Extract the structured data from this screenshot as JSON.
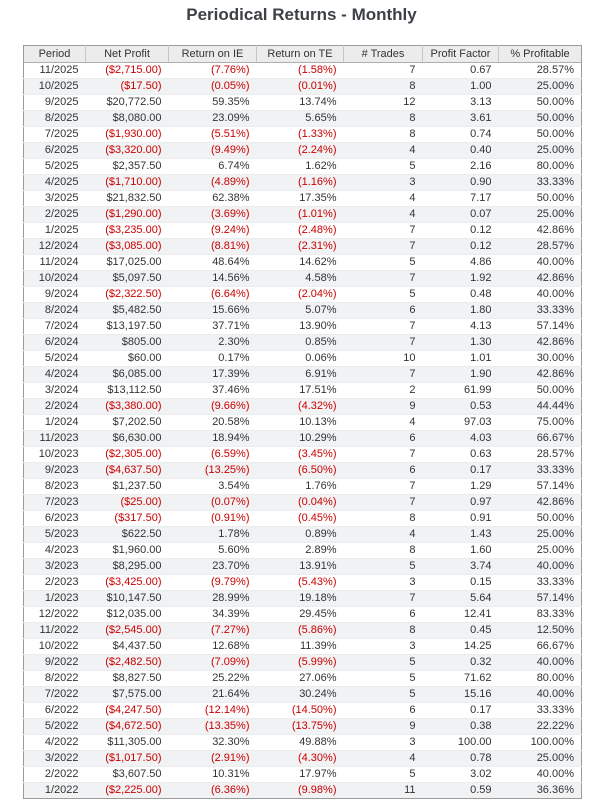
{
  "title": "Periodical Returns - Monthly",
  "colors": {
    "title_color": "#3d4145",
    "text_color": "#333333",
    "negative": "#cc0000",
    "header_bg": "#ececec",
    "stripe": "#f0f2f4",
    "outer_border": "#9b9b9b",
    "header_border": "#a7afb7",
    "row_border": "#eaecee"
  },
  "table": {
    "columns": [
      "Period",
      "Net Profit",
      "Return on IE",
      "Return on TE",
      "# Trades",
      "Profit Factor",
      "% Profitable"
    ],
    "column_keys": [
      "period",
      "net-profit",
      "return-on-ie",
      "return-on-te",
      "num-trades",
      "profit-factor",
      "pct-profitable"
    ],
    "rows": [
      [
        "11/2025",
        "($2,715.00)",
        "(7.76%)",
        "(1.58%)",
        "7",
        "0.67",
        "28.57%"
      ],
      [
        "10/2025",
        "($17.50)",
        "(0.05%)",
        "(0.01%)",
        "8",
        "1.00",
        "25.00%"
      ],
      [
        "9/2025",
        "$20,772.50",
        "59.35%",
        "13.74%",
        "12",
        "3.13",
        "50.00%"
      ],
      [
        "8/2025",
        "$8,080.00",
        "23.09%",
        "5.65%",
        "8",
        "3.61",
        "50.00%"
      ],
      [
        "7/2025",
        "($1,930.00)",
        "(5.51%)",
        "(1.33%)",
        "8",
        "0.74",
        "50.00%"
      ],
      [
        "6/2025",
        "($3,320.00)",
        "(9.49%)",
        "(2.24%)",
        "4",
        "0.40",
        "25.00%"
      ],
      [
        "5/2025",
        "$2,357.50",
        "6.74%",
        "1.62%",
        "5",
        "2.16",
        "80.00%"
      ],
      [
        "4/2025",
        "($1,710.00)",
        "(4.89%)",
        "(1.16%)",
        "3",
        "0.90",
        "33.33%"
      ],
      [
        "3/2025",
        "$21,832.50",
        "62.38%",
        "17.35%",
        "4",
        "7.17",
        "50.00%"
      ],
      [
        "2/2025",
        "($1,290.00)",
        "(3.69%)",
        "(1.01%)",
        "4",
        "0.07",
        "25.00%"
      ],
      [
        "1/2025",
        "($3,235.00)",
        "(9.24%)",
        "(2.48%)",
        "7",
        "0.12",
        "42.86%"
      ],
      [
        "12/2024",
        "($3,085.00)",
        "(8.81%)",
        "(2.31%)",
        "7",
        "0.12",
        "28.57%"
      ],
      [
        "11/2024",
        "$17,025.00",
        "48.64%",
        "14.62%",
        "5",
        "4.86",
        "40.00%"
      ],
      [
        "10/2024",
        "$5,097.50",
        "14.56%",
        "4.58%",
        "7",
        "1.92",
        "42.86%"
      ],
      [
        "9/2024",
        "($2,322.50)",
        "(6.64%)",
        "(2.04%)",
        "5",
        "0.48",
        "40.00%"
      ],
      [
        "8/2024",
        "$5,482.50",
        "15.66%",
        "5.07%",
        "6",
        "1.80",
        "33.33%"
      ],
      [
        "7/2024",
        "$13,197.50",
        "37.71%",
        "13.90%",
        "7",
        "4.13",
        "57.14%"
      ],
      [
        "6/2024",
        "$805.00",
        "2.30%",
        "0.85%",
        "7",
        "1.30",
        "42.86%"
      ],
      [
        "5/2024",
        "$60.00",
        "0.17%",
        "0.06%",
        "10",
        "1.01",
        "30.00%"
      ],
      [
        "4/2024",
        "$6,085.00",
        "17.39%",
        "6.91%",
        "7",
        "1.90",
        "42.86%"
      ],
      [
        "3/2024",
        "$13,112.50",
        "37.46%",
        "17.51%",
        "2",
        "61.99",
        "50.00%"
      ],
      [
        "2/2024",
        "($3,380.00)",
        "(9.66%)",
        "(4.32%)",
        "9",
        "0.53",
        "44.44%"
      ],
      [
        "1/2024",
        "$7,202.50",
        "20.58%",
        "10.13%",
        "4",
        "97.03",
        "75.00%"
      ],
      [
        "11/2023",
        "$6,630.00",
        "18.94%",
        "10.29%",
        "6",
        "4.03",
        "66.67%"
      ],
      [
        "10/2023",
        "($2,305.00)",
        "(6.59%)",
        "(3.45%)",
        "7",
        "0.63",
        "28.57%"
      ],
      [
        "9/2023",
        "($4,637.50)",
        "(13.25%)",
        "(6.50%)",
        "6",
        "0.17",
        "33.33%"
      ],
      [
        "8/2023",
        "$1,237.50",
        "3.54%",
        "1.76%",
        "7",
        "1.29",
        "57.14%"
      ],
      [
        "7/2023",
        "($25.00)",
        "(0.07%)",
        "(0.04%)",
        "7",
        "0.97",
        "42.86%"
      ],
      [
        "6/2023",
        "($317.50)",
        "(0.91%)",
        "(0.45%)",
        "8",
        "0.91",
        "50.00%"
      ],
      [
        "5/2023",
        "$622.50",
        "1.78%",
        "0.89%",
        "4",
        "1.43",
        "25.00%"
      ],
      [
        "4/2023",
        "$1,960.00",
        "5.60%",
        "2.89%",
        "8",
        "1.60",
        "25.00%"
      ],
      [
        "3/2023",
        "$8,295.00",
        "23.70%",
        "13.91%",
        "5",
        "3.74",
        "40.00%"
      ],
      [
        "2/2023",
        "($3,425.00)",
        "(9.79%)",
        "(5.43%)",
        "3",
        "0.15",
        "33.33%"
      ],
      [
        "1/2023",
        "$10,147.50",
        "28.99%",
        "19.18%",
        "7",
        "5.64",
        "57.14%"
      ],
      [
        "12/2022",
        "$12,035.00",
        "34.39%",
        "29.45%",
        "6",
        "12.41",
        "83.33%"
      ],
      [
        "11/2022",
        "($2,545.00)",
        "(7.27%)",
        "(5.86%)",
        "8",
        "0.45",
        "12.50%"
      ],
      [
        "10/2022",
        "$4,437.50",
        "12.68%",
        "11.39%",
        "3",
        "14.25",
        "66.67%"
      ],
      [
        "9/2022",
        "($2,482.50)",
        "(7.09%)",
        "(5.99%)",
        "5",
        "0.32",
        "40.00%"
      ],
      [
        "8/2022",
        "$8,827.50",
        "25.22%",
        "27.06%",
        "5",
        "71.62",
        "80.00%"
      ],
      [
        "7/2022",
        "$7,575.00",
        "21.64%",
        "30.24%",
        "5",
        "15.16",
        "40.00%"
      ],
      [
        "6/2022",
        "($4,247.50)",
        "(12.14%)",
        "(14.50%)",
        "6",
        "0.17",
        "33.33%"
      ],
      [
        "5/2022",
        "($4,672.50)",
        "(13.35%)",
        "(13.75%)",
        "9",
        "0.38",
        "22.22%"
      ],
      [
        "4/2022",
        "$11,305.00",
        "32.30%",
        "49.88%",
        "3",
        "100.00",
        "100.00%"
      ],
      [
        "3/2022",
        "($1,017.50)",
        "(2.91%)",
        "(4.30%)",
        "4",
        "0.78",
        "25.00%"
      ],
      [
        "2/2022",
        "$3,607.50",
        "10.31%",
        "17.97%",
        "5",
        "3.02",
        "40.00%"
      ],
      [
        "1/2022",
        "($2,225.00)",
        "(6.36%)",
        "(9.98%)",
        "11",
        "0.59",
        "36.36%"
      ]
    ]
  }
}
